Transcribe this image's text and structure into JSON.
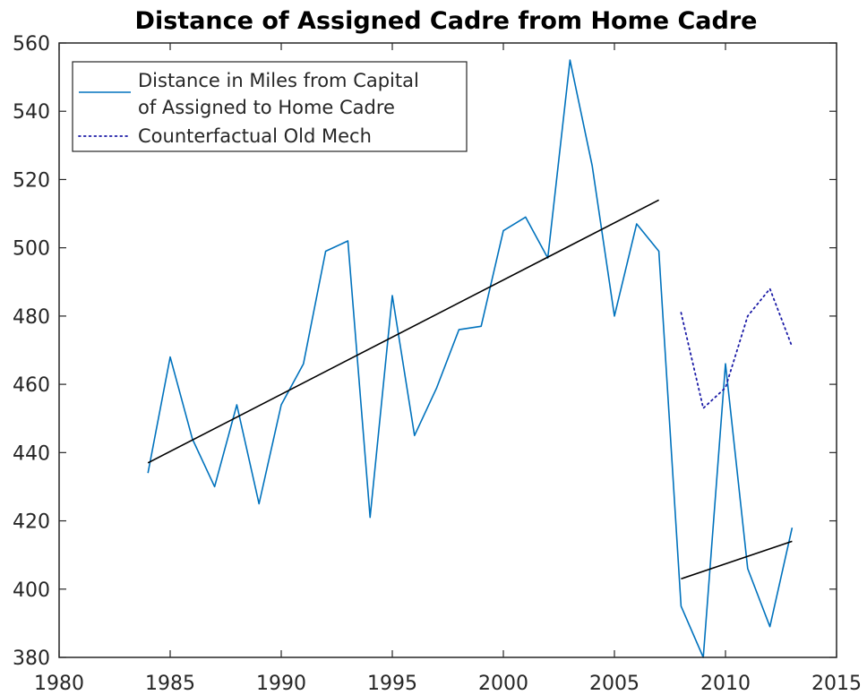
{
  "chart_data": {
    "type": "line",
    "title": "Distance of Assigned Cadre from Home Cadre",
    "xlabel": "",
    "ylabel": "",
    "xlim": [
      1980,
      2015
    ],
    "ylim": [
      380,
      560
    ],
    "xticks": [
      1980,
      1985,
      1990,
      1995,
      2000,
      2005,
      2010,
      2015
    ],
    "yticks": [
      380,
      400,
      420,
      440,
      460,
      480,
      500,
      520,
      540,
      560
    ],
    "legend_position": "top-left",
    "grid": false,
    "series": [
      {
        "name_lines": [
          "Distance in Miles from Capital",
          "of Assigned to Home Cadre"
        ],
        "style": "solid",
        "color": "#0072BD",
        "x": [
          1984,
          1985,
          1986,
          1987,
          1988,
          1989,
          1990,
          1991,
          1992,
          1993,
          1994,
          1995,
          1996,
          1997,
          1998,
          1999,
          2000,
          2001,
          2002,
          2003,
          2004,
          2005,
          2006,
          2007,
          2008,
          2009,
          2010,
          2011,
          2012,
          2013
        ],
        "y": [
          434,
          468,
          444,
          430,
          454,
          425,
          454,
          466,
          499,
          502,
          421,
          486,
          445,
          459,
          476,
          477,
          505,
          509,
          497,
          555,
          524,
          480,
          507,
          499,
          395,
          380,
          466,
          406,
          389,
          418
        ]
      },
      {
        "name": "Counterfactual Old Mech",
        "style": "dotted",
        "color": "#1a1aa6",
        "x": [
          2008,
          2009,
          2010,
          2011,
          2012,
          2013
        ],
        "y": [
          481,
          453,
          459,
          480,
          488,
          471
        ]
      },
      {
        "style": "solid",
        "color": "#000000",
        "legend": false,
        "x": [
          1984,
          2007
        ],
        "y": [
          437,
          514
        ]
      },
      {
        "style": "solid",
        "color": "#000000",
        "legend": false,
        "x": [
          2008,
          2013
        ],
        "y": [
          403,
          414
        ]
      }
    ]
  }
}
